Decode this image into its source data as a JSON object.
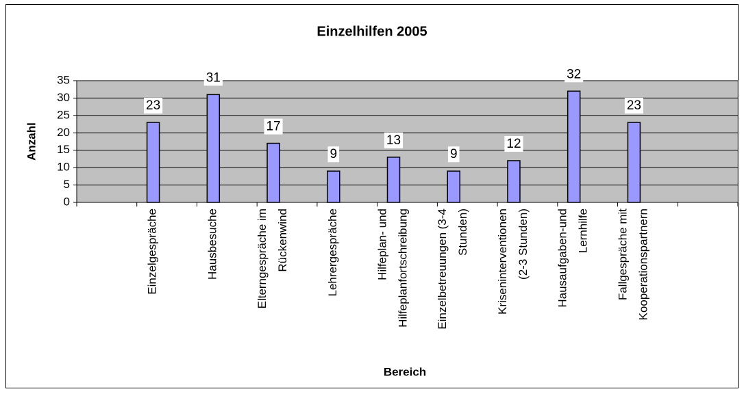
{
  "chart_data": {
    "type": "bar",
    "title": "Einzelhilfen 2005",
    "x_label": "Bereich",
    "y_label": "Anzahl",
    "categories": [
      null,
      "Einzelgespräche",
      "Hausbesuche",
      "Elterngespräche im\nRückenwind",
      "Lehrergespräche",
      "Hilfeplan- und\nHilfeplanfortschreibung",
      "Einzelbetreuungen (3-4\nStunden)",
      "Kriseninterventionen\n(2-3 Stunden)",
      "Hausaufgaben-und\nLernhilfe",
      "Fallgespräche mit\nKooperationspartnern",
      null
    ],
    "values": [
      null,
      23,
      31,
      17,
      9,
      13,
      9,
      12,
      32,
      23,
      null
    ],
    "color": "#9999ff",
    "ylim": [
      0,
      35
    ],
    "yticks": [
      0,
      5,
      10,
      15,
      20,
      25,
      30,
      35
    ],
    "grid": true
  }
}
